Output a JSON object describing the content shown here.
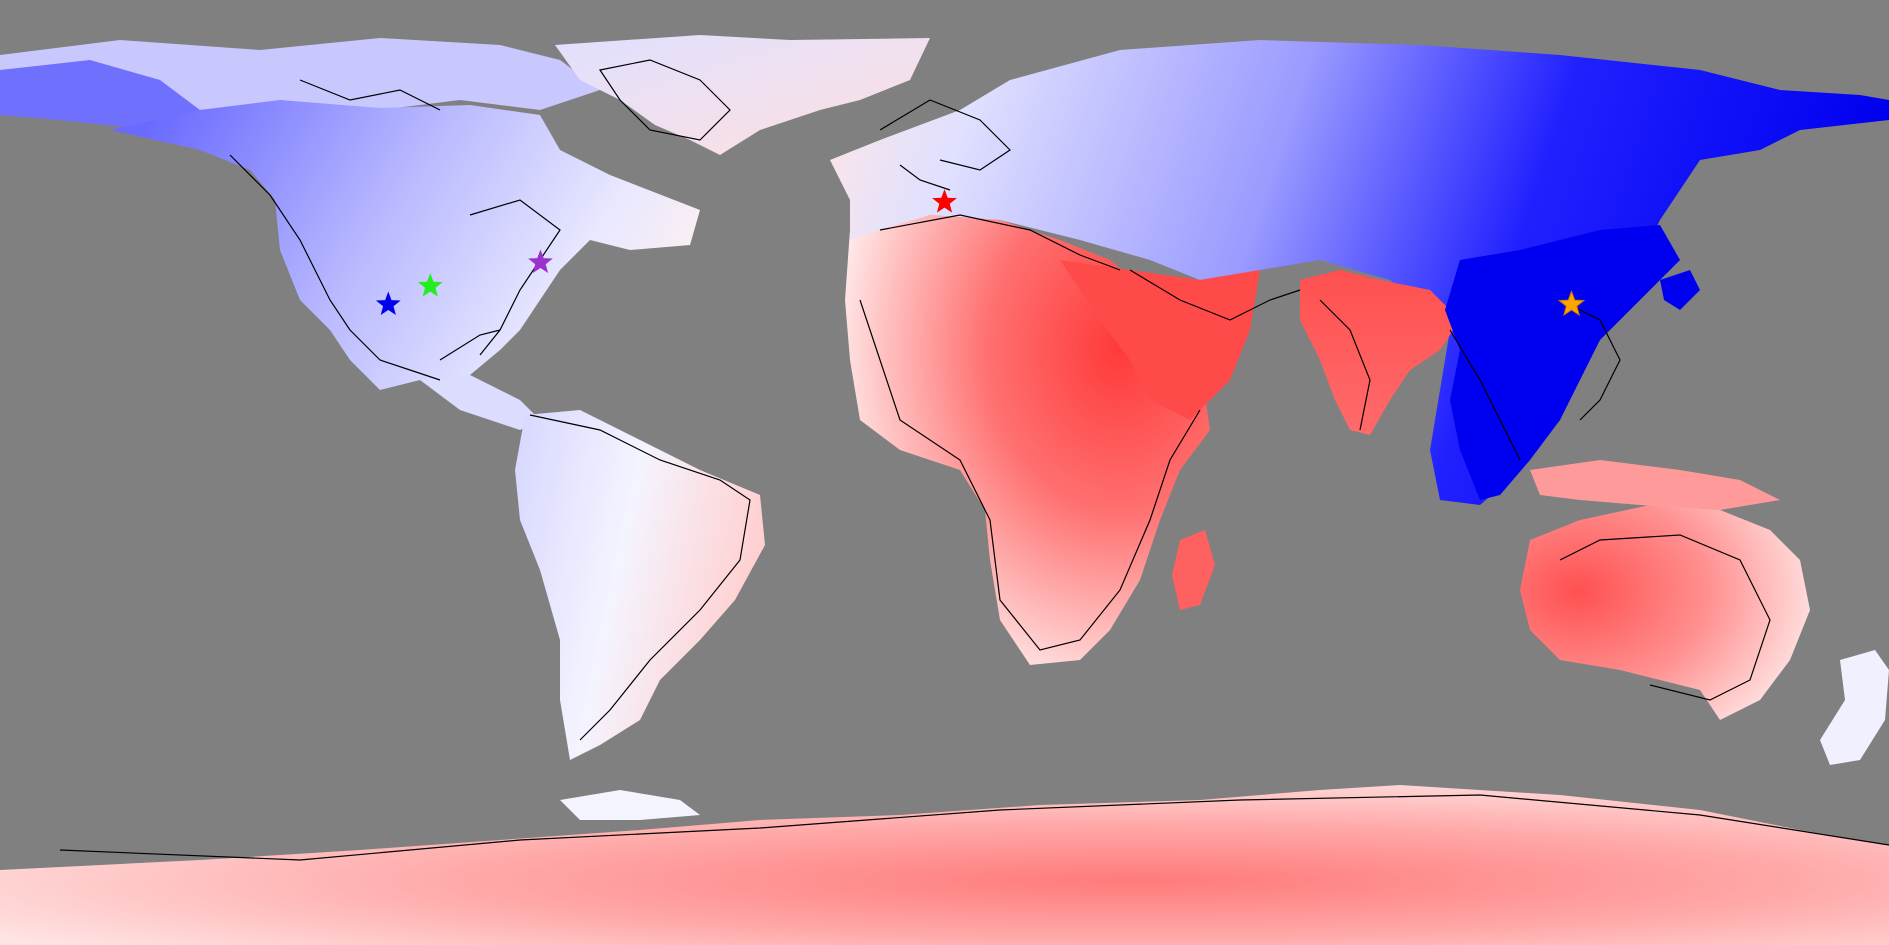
{
  "map": {
    "projection": "equirectangular",
    "background_color": "#808080",
    "colors": {
      "deep_blue": "#0000f0",
      "blue": "#5a5aff",
      "light_blue": "#b4b4ff",
      "pale_blue": "#e6e6ff",
      "white": "#fafafa",
      "pale_red": "#ffd8d8",
      "light_red": "#ffa6a6",
      "red": "#ff6a6a",
      "deep_red": "#ff3a3a",
      "coastline": "#000000"
    },
    "markers": [
      {
        "name": "london-star",
        "lon": 0.0,
        "lat": 51.5,
        "color": "#ff0000",
        "symbol": "star"
      },
      {
        "name": "northeast-us-star",
        "lon": -77.0,
        "lat": 40.0,
        "color": "#9933cc",
        "symbol": "star"
      },
      {
        "name": "great-plains-star",
        "lon": -98.0,
        "lat": 35.5,
        "color": "#22ee22",
        "symbol": "star"
      },
      {
        "name": "southwest-us-star",
        "lon": -106.0,
        "lat": 32.0,
        "color": "#0000ee",
        "symbol": "star"
      },
      {
        "name": "east-china-star",
        "lon": 119.5,
        "lat": 32.0,
        "color": "#ffa500",
        "symbol": "star"
      }
    ]
  }
}
